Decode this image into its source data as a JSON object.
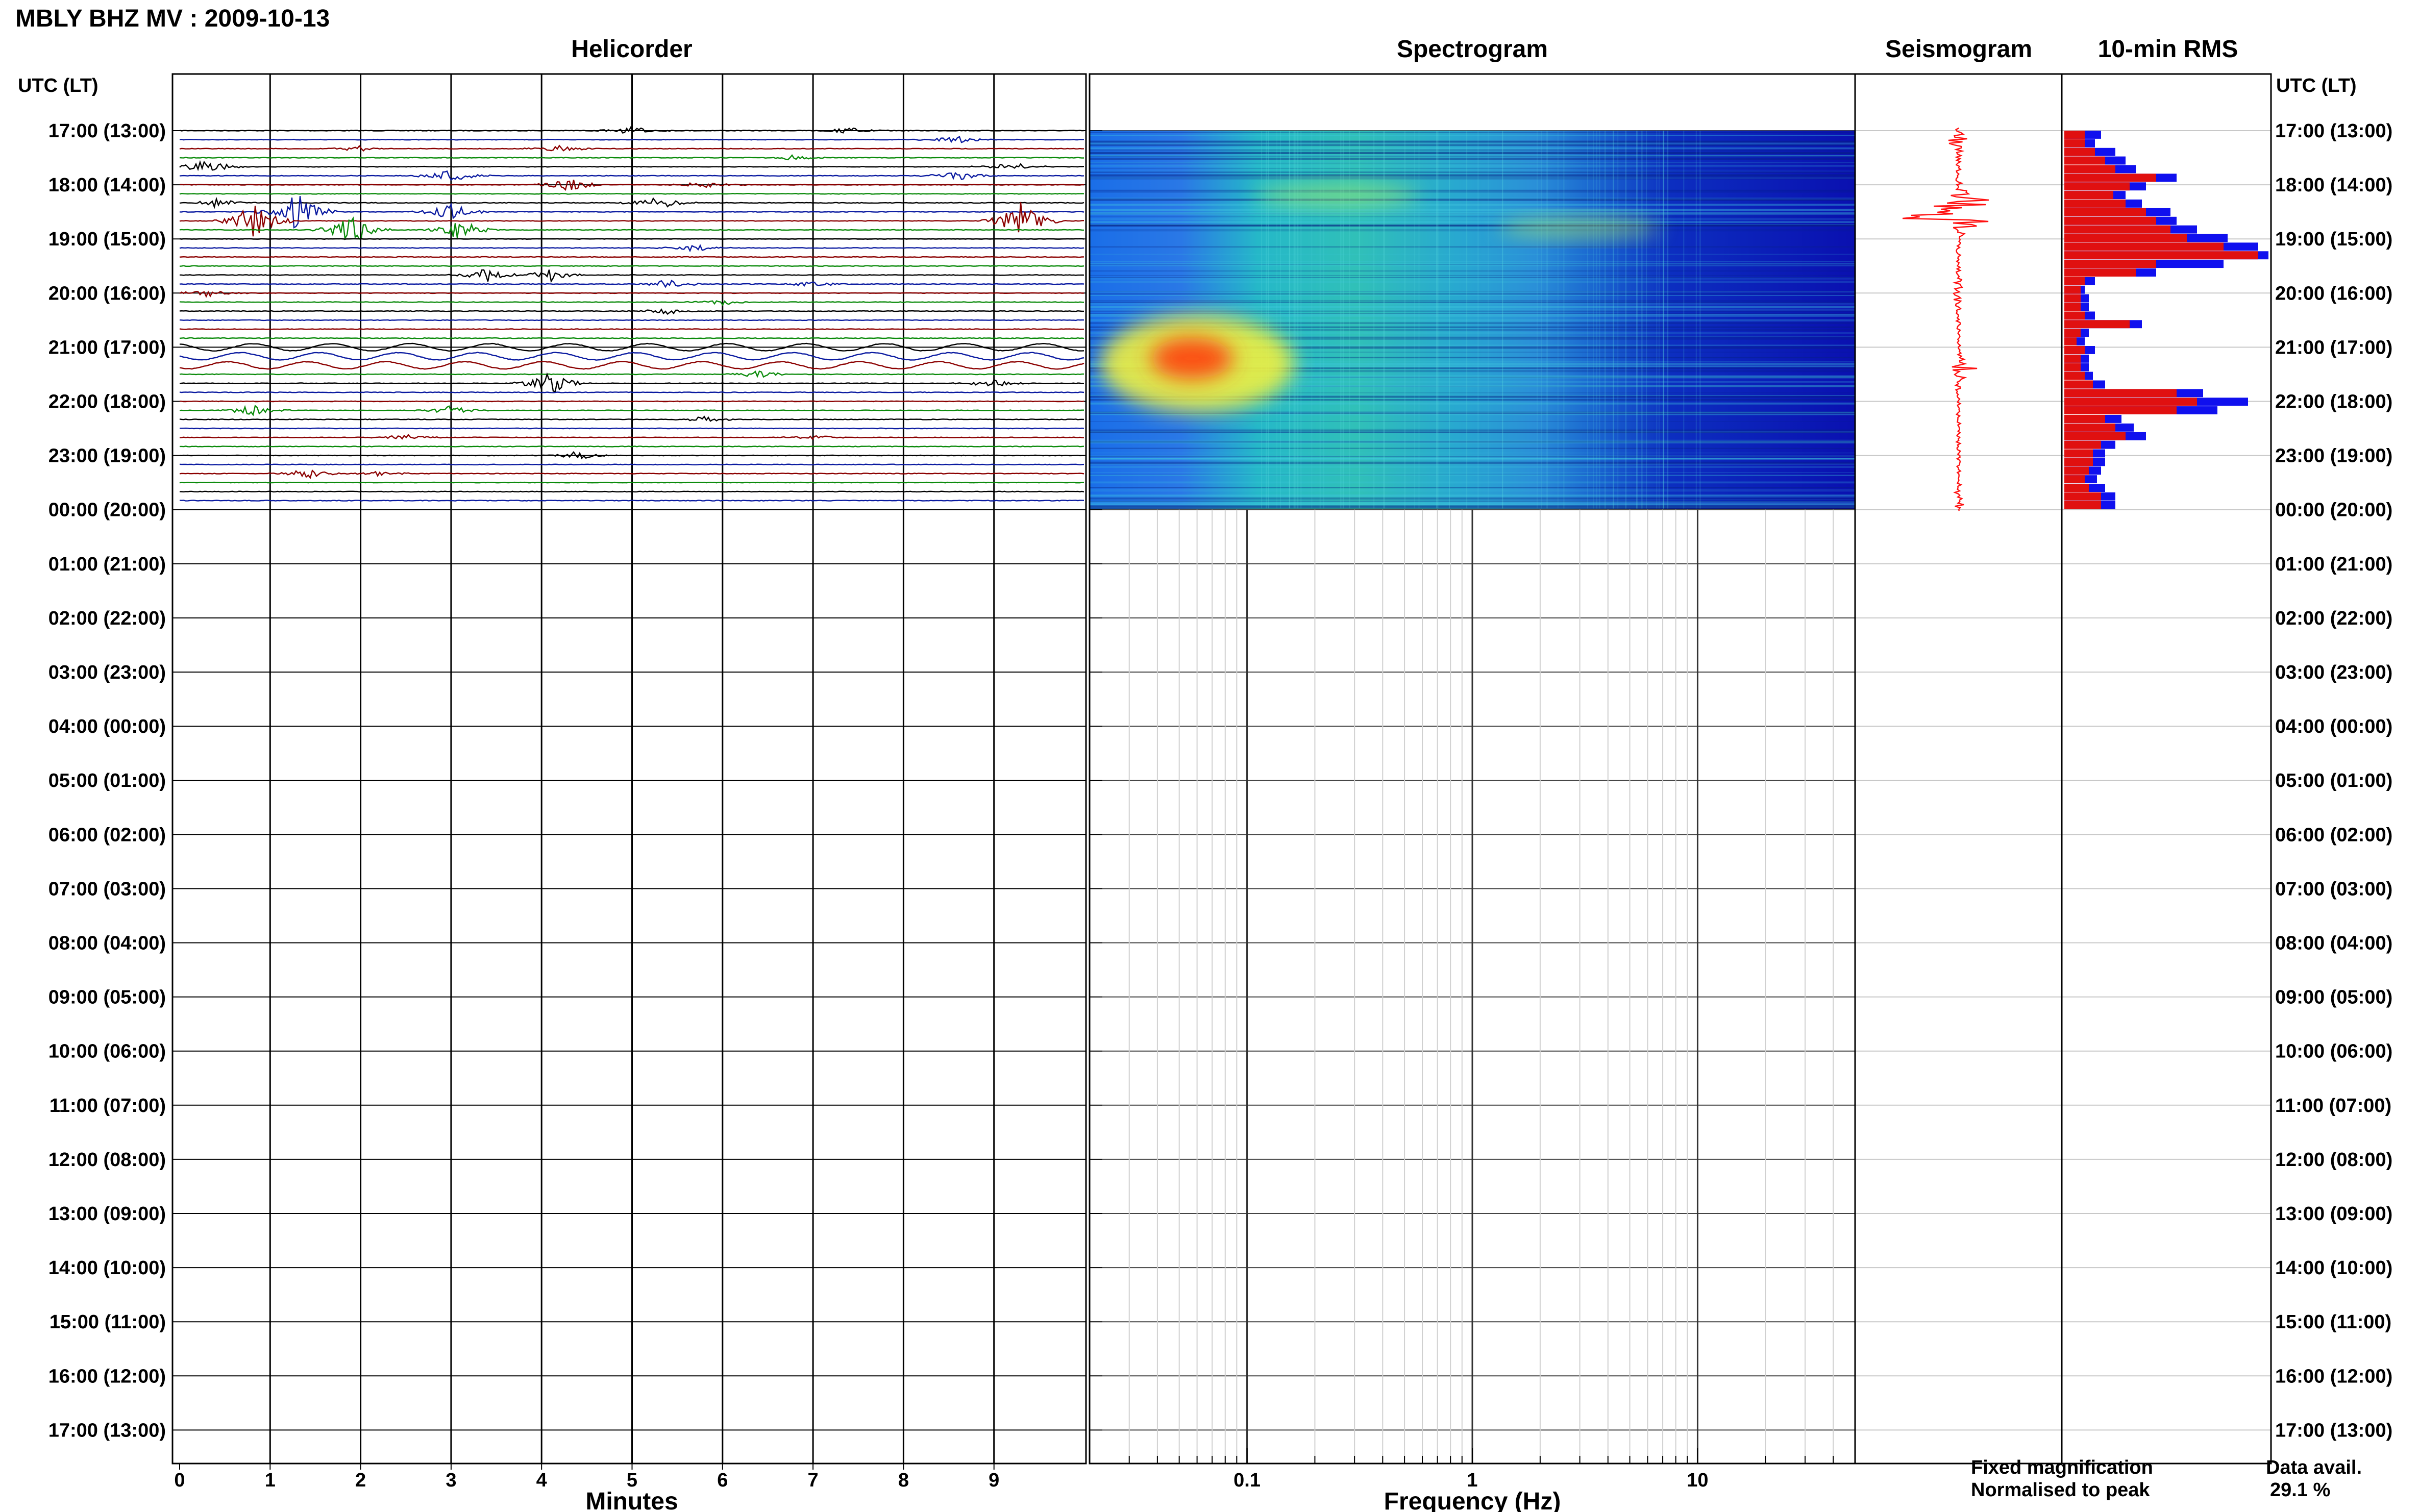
{
  "page": {
    "title": "MBLY BHZ MV : 2009-10-13",
    "utc_label_left": "UTC (LT)",
    "utc_label_right": "UTC (LT)"
  },
  "panels": {
    "helicorder_title": "Helicorder",
    "spectrogram_title": "Spectrogram",
    "seismogram_title": "Seismogram",
    "rms_title": "10-min RMS"
  },
  "legend": {
    "fixed": "Fixed magnification",
    "normalised": "Normalised to peak",
    "data_avail_label": "Data avail.",
    "data_avail_value": "29.1 %"
  },
  "colors": {
    "trace_cycle": [
      "#000000",
      "#0a1aa0",
      "#8b0000",
      "#0a8a0a"
    ],
    "rms_fixed": "#1010ee",
    "rms_normalised": "#e01010",
    "seismogram": "#ff1010",
    "spectrogram_background": "#0a10b0"
  },
  "chart_data": [
    {
      "type": "line",
      "name": "helicorder",
      "xlabel": "Minutes",
      "x_ticks": [
        0,
        1,
        2,
        3,
        4,
        5,
        6,
        7,
        8,
        9
      ],
      "xlim": [
        0,
        10
      ],
      "y_hour_labels": [
        "17:00 (13:00)",
        "18:00 (14:00)",
        "19:00 (15:00)",
        "20:00 (16:00)",
        "21:00 (17:00)",
        "22:00 (18:00)",
        "23:00 (19:00)",
        "00:00 (20:00)",
        "01:00 (21:00)",
        "02:00 (22:00)",
        "03:00 (23:00)",
        "04:00 (00:00)",
        "05:00 (01:00)",
        "06:00 (02:00)",
        "07:00 (03:00)",
        "08:00 (04:00)",
        "09:00 (05:00)",
        "10:00 (06:00)",
        "11:00 (07:00)",
        "12:00 (08:00)",
        "13:00 (09:00)",
        "14:00 (10:00)",
        "15:00 (11:00)",
        "16:00 (12:00)",
        "17:00 (13:00)"
      ],
      "trace_interval_min": 10,
      "traces_with_data": 42,
      "events": [
        {
          "trace": 0,
          "minute": 5.0,
          "amp": 0.5
        },
        {
          "trace": 0,
          "minute": 7.4,
          "amp": 0.4
        },
        {
          "trace": 1,
          "minute": 8.6,
          "amp": 0.5
        },
        {
          "trace": 2,
          "minute": 2.0,
          "amp": 0.4
        },
        {
          "trace": 2,
          "minute": 4.2,
          "amp": 0.5
        },
        {
          "trace": 3,
          "minute": 6.8,
          "amp": 0.4
        },
        {
          "trace": 4,
          "minute": 0.3,
          "amp": 0.9
        },
        {
          "trace": 4,
          "minute": 9.2,
          "amp": 0.6
        },
        {
          "trace": 5,
          "minute": 3.0,
          "amp": 0.9
        },
        {
          "trace": 5,
          "minute": 8.6,
          "amp": 0.7
        },
        {
          "trace": 6,
          "minute": 4.3,
          "amp": 0.9
        },
        {
          "trace": 6,
          "minute": 5.8,
          "amp": 0.5
        },
        {
          "trace": 8,
          "minute": 0.4,
          "amp": 0.6
        },
        {
          "trace": 8,
          "minute": 5.3,
          "amp": 0.9
        },
        {
          "trace": 9,
          "minute": 1.3,
          "amp": 2.5
        },
        {
          "trace": 9,
          "minute": 3.0,
          "amp": 1.2
        },
        {
          "trace": 10,
          "minute": 0.8,
          "amp": 3.0
        },
        {
          "trace": 10,
          "minute": 9.3,
          "amp": 2.5
        },
        {
          "trace": 11,
          "minute": 1.9,
          "amp": 2.0
        },
        {
          "trace": 11,
          "minute": 3.1,
          "amp": 1.4
        },
        {
          "trace": 13,
          "minute": 5.7,
          "amp": 0.5
        },
        {
          "trace": 16,
          "minute": 3.4,
          "amp": 0.9
        },
        {
          "trace": 16,
          "minute": 4.1,
          "amp": 0.8
        },
        {
          "trace": 17,
          "minute": 5.4,
          "amp": 0.6
        },
        {
          "trace": 17,
          "minute": 7.0,
          "amp": 0.4
        },
        {
          "trace": 18,
          "minute": 0.3,
          "amp": 0.5
        },
        {
          "trace": 19,
          "minute": 6.0,
          "amp": 0.4
        },
        {
          "trace": 20,
          "minute": 5.4,
          "amp": 0.4
        },
        {
          "trace": 27,
          "minute": 6.4,
          "amp": 0.5
        },
        {
          "trace": 28,
          "minute": 4.1,
          "amp": 1.4
        },
        {
          "trace": 28,
          "minute": 9.0,
          "amp": 0.6
        },
        {
          "trace": 31,
          "minute": 0.8,
          "amp": 0.7
        },
        {
          "trace": 31,
          "minute": 3.0,
          "amp": 0.6
        },
        {
          "trace": 32,
          "minute": 5.8,
          "amp": 0.4
        },
        {
          "trace": 34,
          "minute": 2.5,
          "amp": 0.4
        },
        {
          "trace": 34,
          "minute": 7.0,
          "amp": 0.4
        },
        {
          "trace": 36,
          "minute": 4.4,
          "amp": 0.6
        },
        {
          "trace": 38,
          "minute": 1.4,
          "amp": 0.7
        },
        {
          "trace": 38,
          "minute": 2.2,
          "amp": 0.4
        }
      ],
      "long_period_traces": [
        24,
        25,
        26
      ]
    },
    {
      "type": "heatmap",
      "name": "spectrogram",
      "xlabel": "Frequency (Hz)",
      "x_scale": "log",
      "x_tick_labels": [
        "0.1",
        "1",
        "10"
      ],
      "xlim": [
        0.02,
        50
      ],
      "yrange_hours": [
        0,
        7
      ],
      "hotspots": [
        {
          "freq_hz": 0.06,
          "hour": 4.3,
          "level": 1.0
        },
        {
          "freq_hz": 0.25,
          "hour": 1.2,
          "level": 0.5
        },
        {
          "freq_hz": 3.0,
          "hour": 1.8,
          "level": 0.5
        }
      ]
    },
    {
      "type": "line",
      "name": "seismogram",
      "bursts": [
        {
          "hour": 1.6,
          "amp": 1.0
        },
        {
          "hour": 1.3,
          "amp": 0.5
        },
        {
          "hour": 4.4,
          "amp": 0.25
        },
        {
          "hour": 0.2,
          "amp": 0.15
        },
        {
          "hour": 3.0,
          "amp": 0.15
        },
        {
          "hour": 6.8,
          "amp": 0.12
        }
      ]
    },
    {
      "type": "bar",
      "name": "rms_10min",
      "series": [
        {
          "name": "Fixed magnification",
          "values": [
            0.18,
            0.15,
            0.25,
            0.3,
            0.35,
            0.55,
            0.4,
            0.3,
            0.38,
            0.52,
            0.55,
            0.65,
            0.8,
            0.95,
            1.0,
            0.78,
            0.45,
            0.15,
            0.1,
            0.12,
            0.12,
            0.15,
            0.38,
            0.12,
            0.1,
            0.15,
            0.12,
            0.12,
            0.14,
            0.2,
            0.68,
            0.9,
            0.75,
            0.28,
            0.34,
            0.4,
            0.25,
            0.2,
            0.2,
            0.18,
            0.16,
            0.2,
            0.25,
            0.25
          ]
        },
        {
          "name": "Normalised to peak",
          "values": [
            0.1,
            0.1,
            0.15,
            0.2,
            0.25,
            0.45,
            0.32,
            0.24,
            0.3,
            0.4,
            0.45,
            0.52,
            0.6,
            0.78,
            0.95,
            0.45,
            0.35,
            0.1,
            0.08,
            0.08,
            0.08,
            0.1,
            0.32,
            0.08,
            0.06,
            0.1,
            0.08,
            0.08,
            0.1,
            0.14,
            0.55,
            0.65,
            0.55,
            0.2,
            0.25,
            0.3,
            0.18,
            0.14,
            0.14,
            0.12,
            0.1,
            0.12,
            0.18,
            0.18
          ]
        }
      ]
    }
  ]
}
